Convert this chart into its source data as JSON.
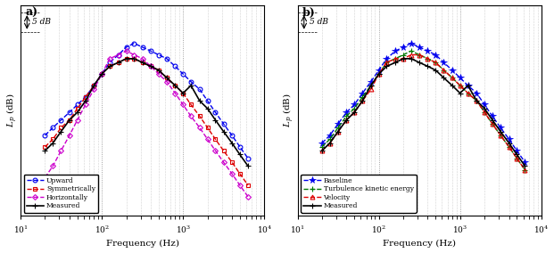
{
  "freq": [
    20,
    25,
    31.5,
    40,
    50,
    63,
    80,
    100,
    125,
    160,
    200,
    250,
    315,
    400,
    500,
    630,
    800,
    1000,
    1250,
    1600,
    2000,
    2500,
    3150,
    4000,
    5000,
    6300
  ],
  "upward": [
    66,
    68,
    70,
    72,
    74,
    76,
    79,
    82,
    85,
    87,
    89,
    90,
    89,
    88,
    87,
    86,
    84,
    82,
    80,
    78,
    75,
    72,
    69,
    66,
    63,
    60
  ],
  "symmetrically": [
    63,
    65,
    68,
    70,
    73,
    76,
    79,
    82,
    84,
    85,
    86,
    86,
    85,
    84,
    83,
    81,
    79,
    77,
    74,
    71,
    68,
    65,
    62,
    59,
    56,
    53
  ],
  "horizontally": [
    55,
    58,
    62,
    66,
    70,
    74,
    78,
    82,
    86,
    87,
    88,
    87,
    86,
    84,
    82,
    80,
    77,
    74,
    71,
    68,
    65,
    62,
    59,
    56,
    53,
    50
  ],
  "measured_a": [
    62,
    64,
    67,
    70,
    72,
    75,
    79,
    82,
    84,
    85,
    86,
    86,
    85,
    84,
    83,
    81,
    79,
    77,
    79,
    75,
    73,
    70,
    67,
    64,
    61,
    58
  ],
  "baseline": [
    64,
    66,
    69,
    72,
    74,
    77,
    80,
    83,
    86,
    88,
    89,
    90,
    89,
    88,
    87,
    85,
    83,
    81,
    79,
    77,
    74,
    71,
    68,
    65,
    62,
    59
  ],
  "turbulence": [
    63,
    65,
    68,
    71,
    73,
    76,
    79,
    82,
    85,
    86,
    87,
    88,
    87,
    86,
    85,
    83,
    81,
    79,
    77,
    75,
    72,
    69,
    66,
    63,
    60,
    57
  ],
  "velocity": [
    62,
    64,
    67,
    70,
    72,
    75,
    78,
    82,
    85,
    86,
    86,
    87,
    87,
    86,
    85,
    83,
    81,
    79,
    77,
    75,
    72,
    69,
    66,
    63,
    60,
    57
  ],
  "measured_b": [
    62,
    64,
    67,
    70,
    72,
    75,
    79,
    82,
    84,
    85,
    86,
    86,
    85,
    84,
    83,
    81,
    79,
    77,
    79,
    75,
    73,
    70,
    67,
    64,
    61,
    58
  ],
  "color_upward": "#0000EE",
  "color_sym": "#DD0000",
  "color_horiz": "#CC00CC",
  "color_meas_a": "#000000",
  "color_baseline": "#0000EE",
  "color_turb": "#007700",
  "color_vel": "#DD0000",
  "color_meas_b": "#000000",
  "xlabel": "Frequency (Hz)",
  "ylabel": "$L_p$ (dB)",
  "scale_label": "5 dB",
  "xlim": [
    10,
    10000
  ],
  "ylim": [
    45,
    100
  ]
}
